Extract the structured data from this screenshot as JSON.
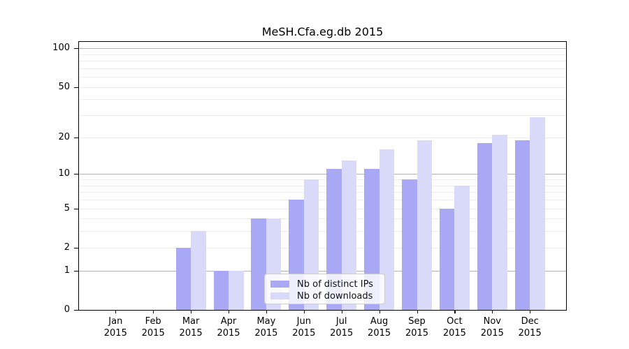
{
  "title": "MeSH.Cfa.eg.db 2015",
  "chart_data": {
    "type": "bar",
    "title": "MeSH.Cfa.eg.db 2015",
    "categories": [
      "Jan 2015",
      "Feb 2015",
      "Mar 2015",
      "Apr 2015",
      "May 2015",
      "Jun 2015",
      "Jul 2015",
      "Aug 2015",
      "Sep 2015",
      "Oct 2015",
      "Nov 2015",
      "Dec 2015"
    ],
    "category_months": [
      "Jan",
      "Feb",
      "Mar",
      "Apr",
      "May",
      "Jun",
      "Jul",
      "Aug",
      "Sep",
      "Oct",
      "Nov",
      "Dec"
    ],
    "category_year": "2015",
    "series": [
      {
        "name": "Nb of distinct IPs",
        "color": "#a8a8f5",
        "values": [
          0,
          0,
          2,
          1,
          4,
          6,
          11,
          11,
          9,
          5,
          18,
          19
        ]
      },
      {
        "name": "Nb of downloads",
        "color": "#d9d9f9",
        "values": [
          0,
          0,
          3,
          1,
          4,
          9,
          13,
          16,
          19,
          8,
          21,
          29
        ]
      }
    ],
    "y_axis": {
      "scale": "log10(1+value)",
      "tick_values": [
        0,
        1,
        2,
        5,
        10,
        20,
        50,
        100
      ],
      "major_gridlines": [
        1,
        10,
        100
      ],
      "minor_gridlines": [
        2,
        3,
        4,
        5,
        6,
        7,
        8,
        9,
        20,
        30,
        40,
        50,
        60,
        70,
        80,
        90
      ],
      "ylim": [
        0,
        115
      ]
    },
    "xlabel": "",
    "ylabel": "",
    "grid": true,
    "legend_position": "lower-center",
    "background_color": "#ffffff",
    "gridline_minor_color": "#ececec",
    "gridline_major_color": "#b3b3b3"
  }
}
